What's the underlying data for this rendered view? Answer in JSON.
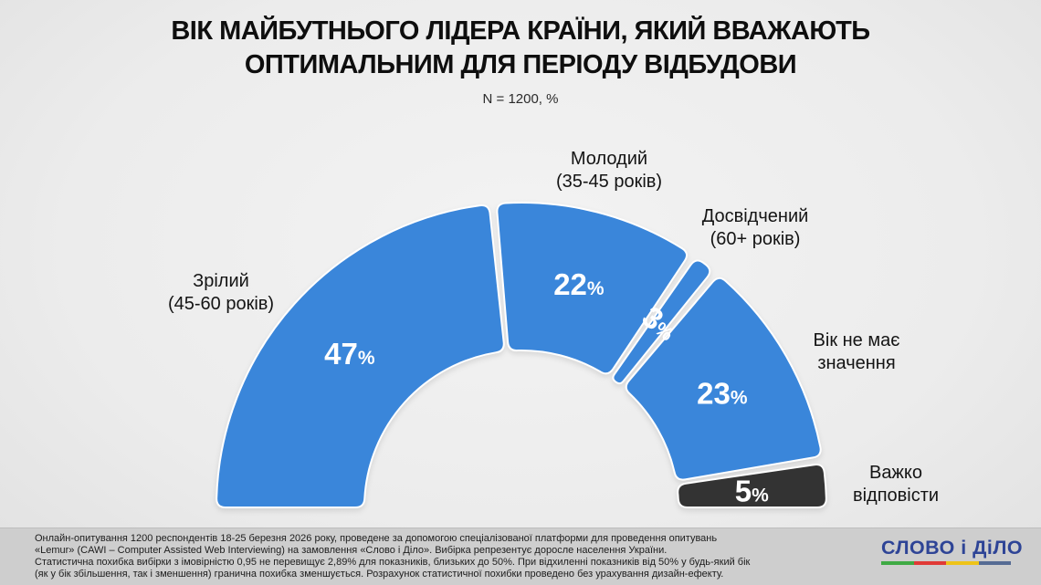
{
  "header": {
    "title_line1": "ВІК МАЙБУТНЬОГО ЛІДЕРА КРАЇНИ, ЯКИЙ ВВАЖАЮТЬ",
    "title_line2": "ОПТИМАЛЬНИМ ДЛЯ ПЕРІОДУ ВІДБУДОВИ",
    "sample_note": "N = 1200, %"
  },
  "chart_data": {
    "type": "half-donut",
    "unit": "%",
    "total": 100,
    "sample_size": 1200,
    "segments": [
      {
        "label": "Зрілий",
        "sublabel": "(45-60 років)",
        "value": 47,
        "color": "#3a86da",
        "rotate_label": false
      },
      {
        "label": "Молодий",
        "sublabel": "(35-45 років)",
        "value": 22,
        "color": "#3a86da",
        "rotate_label": false
      },
      {
        "label": "Досвідчений",
        "sublabel": "(60+ років)",
        "value": 3,
        "color": "#3a86da",
        "rotate_label": true
      },
      {
        "label": "Вік не має",
        "sublabel": "значення",
        "value": 23,
        "color": "#3a86da",
        "rotate_label": false
      },
      {
        "label": "Важко",
        "sublabel": "відповісти",
        "value": 5,
        "color": "#333333",
        "rotate_label": false
      }
    ],
    "value_label_color": "#ffffff",
    "legend_position": "around-arc",
    "grid": false
  },
  "footer": {
    "lines": [
      "Онлайн-опитування 1200 респондентів 18-25 березня 2026 року, проведене за допомогою спеціалізованої платформи для проведення опитувань",
      "«Lemur» (CAWI – Computer Assisted Web Interviewing) на замовлення «Слово і Діло». Вибірка репрезентує доросле населення України.",
      "Статистична похибка вибірки з імовірністю 0,95 не перевищує 2,89% для показників, близьких до 50%. При відхиленні показників від 50% у будь-який бік",
      "(як у бік збільшення, так і зменшення) гранична похибка зменшується. Розрахунок статистичної похибки проведено без урахування дизайн-ефекту."
    ]
  },
  "logo": {
    "text": "СЛОВО і ДіЛО",
    "color": "#2e4496",
    "underline_colors": [
      "#3faa44",
      "#e03a36",
      "#eec319",
      "#566c94"
    ]
  }
}
